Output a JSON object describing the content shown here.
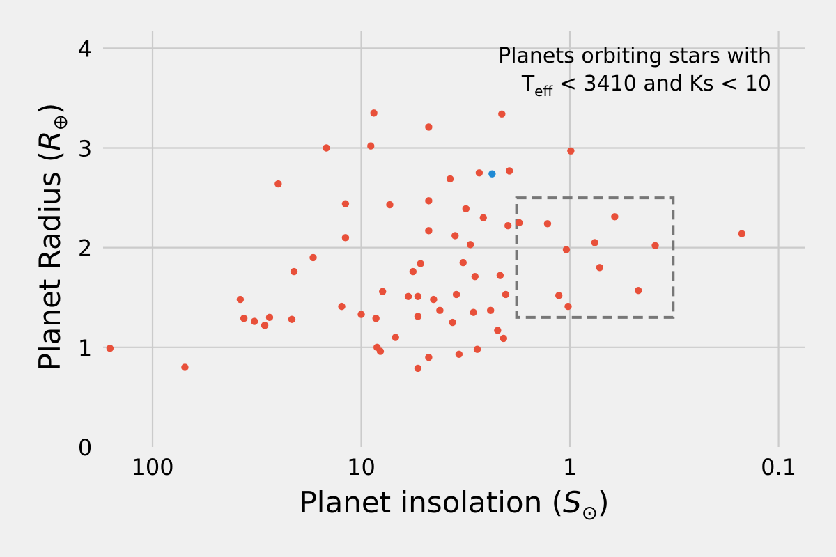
{
  "chart_data": {
    "type": "scatter",
    "title": "",
    "xlabel": "Planet insolation (",
    "xlabel_sym": "S",
    "xlabel_sub": "⊙",
    "xlabel_close": ")",
    "ylabel": "Planet Radius (",
    "ylabel_sym": "R",
    "ylabel_sub": "⊕",
    "ylabel_close": ")",
    "x_scale": "log",
    "x_inverted": true,
    "xlim": [
      170,
      0.075
    ],
    "ylim": [
      0,
      4.1
    ],
    "x_ticks": [
      {
        "value": 100,
        "label": "100"
      },
      {
        "value": 10,
        "label": "10"
      },
      {
        "value": 1,
        "label": "1"
      },
      {
        "value": 0.1,
        "label": "0.1"
      }
    ],
    "y_ticks": [
      {
        "value": 0,
        "label": "0"
      },
      {
        "value": 1,
        "label": "1"
      },
      {
        "value": 2,
        "label": "2"
      },
      {
        "value": 3,
        "label": "3"
      },
      {
        "value": 4,
        "label": "4"
      }
    ],
    "grid": true,
    "annotation": {
      "line1": "Planets orbiting stars with",
      "line2_prefix": "T",
      "line2_sub": "eff",
      "line2_rest": " < 3410 and Ks < 10"
    },
    "highlight_box": {
      "x_range": [
        1.8,
        0.32
      ],
      "y_range": [
        1.3,
        2.5
      ],
      "style": "dashed",
      "color": "#777777"
    },
    "colors": {
      "points": "#e8503a",
      "highlight": "#1f8ad4",
      "background": "#f0f0f0",
      "grid": "#cbcbcb"
    },
    "series": [
      {
        "color": "#e8503a",
        "points": [
          {
            "x": 160,
            "y": 0.99
          },
          {
            "x": 70,
            "y": 0.8
          },
          {
            "x": 38,
            "y": 1.48
          },
          {
            "x": 36.5,
            "y": 1.29
          },
          {
            "x": 32.5,
            "y": 1.26
          },
          {
            "x": 29,
            "y": 1.22
          },
          {
            "x": 27.5,
            "y": 1.3
          },
          {
            "x": 25,
            "y": 2.64
          },
          {
            "x": 21.5,
            "y": 1.28
          },
          {
            "x": 21,
            "y": 1.76
          },
          {
            "x": 17,
            "y": 1.9
          },
          {
            "x": 14.7,
            "y": 3.0
          },
          {
            "x": 12.4,
            "y": 1.41
          },
          {
            "x": 11.9,
            "y": 2.44
          },
          {
            "x": 11.9,
            "y": 2.1
          },
          {
            "x": 10.0,
            "y": 1.33
          },
          {
            "x": 9.0,
            "y": 3.02
          },
          {
            "x": 8.7,
            "y": 3.35
          },
          {
            "x": 8.5,
            "y": 1.29
          },
          {
            "x": 8.4,
            "y": 1.0
          },
          {
            "x": 8.1,
            "y": 0.96
          },
          {
            "x": 7.9,
            "y": 1.56
          },
          {
            "x": 7.3,
            "y": 2.43
          },
          {
            "x": 6.85,
            "y": 1.1
          },
          {
            "x": 5.95,
            "y": 1.51
          },
          {
            "x": 5.65,
            "y": 1.76
          },
          {
            "x": 5.35,
            "y": 1.31
          },
          {
            "x": 5.35,
            "y": 1.51
          },
          {
            "x": 5.35,
            "y": 0.79
          },
          {
            "x": 5.2,
            "y": 1.84
          },
          {
            "x": 4.75,
            "y": 3.21
          },
          {
            "x": 4.75,
            "y": 2.47
          },
          {
            "x": 4.75,
            "y": 2.17
          },
          {
            "x": 4.75,
            "y": 0.9
          },
          {
            "x": 4.5,
            "y": 1.48
          },
          {
            "x": 4.2,
            "y": 1.37
          },
          {
            "x": 3.75,
            "y": 2.69
          },
          {
            "x": 3.65,
            "y": 1.25
          },
          {
            "x": 3.55,
            "y": 2.12
          },
          {
            "x": 3.5,
            "y": 1.53
          },
          {
            "x": 3.4,
            "y": 0.93
          },
          {
            "x": 3.25,
            "y": 1.85
          },
          {
            "x": 3.15,
            "y": 2.39
          },
          {
            "x": 3.0,
            "y": 2.03
          },
          {
            "x": 2.9,
            "y": 1.35
          },
          {
            "x": 2.85,
            "y": 1.71
          },
          {
            "x": 2.78,
            "y": 0.98
          },
          {
            "x": 2.72,
            "y": 2.75
          },
          {
            "x": 2.6,
            "y": 2.3
          },
          {
            "x": 2.4,
            "y": 1.37
          },
          {
            "x": 2.22,
            "y": 1.17
          },
          {
            "x": 2.16,
            "y": 1.72
          },
          {
            "x": 2.12,
            "y": 3.34
          },
          {
            "x": 2.08,
            "y": 1.09
          },
          {
            "x": 2.03,
            "y": 1.53
          },
          {
            "x": 1.98,
            "y": 2.22
          },
          {
            "x": 1.95,
            "y": 2.77
          },
          {
            "x": 1.75,
            "y": 2.25
          },
          {
            "x": 1.28,
            "y": 2.24
          },
          {
            "x": 1.13,
            "y": 1.52
          },
          {
            "x": 1.04,
            "y": 1.98
          },
          {
            "x": 1.02,
            "y": 1.41
          },
          {
            "x": 0.99,
            "y": 2.97
          },
          {
            "x": 0.76,
            "y": 2.05
          },
          {
            "x": 0.72,
            "y": 1.8
          },
          {
            "x": 0.61,
            "y": 2.31
          },
          {
            "x": 0.47,
            "y": 1.57
          },
          {
            "x": 0.39,
            "y": 2.02
          },
          {
            "x": 0.15,
            "y": 2.14
          }
        ]
      },
      {
        "color": "#1f8ad4",
        "points": [
          {
            "x": 2.36,
            "y": 2.74
          }
        ]
      }
    ]
  }
}
